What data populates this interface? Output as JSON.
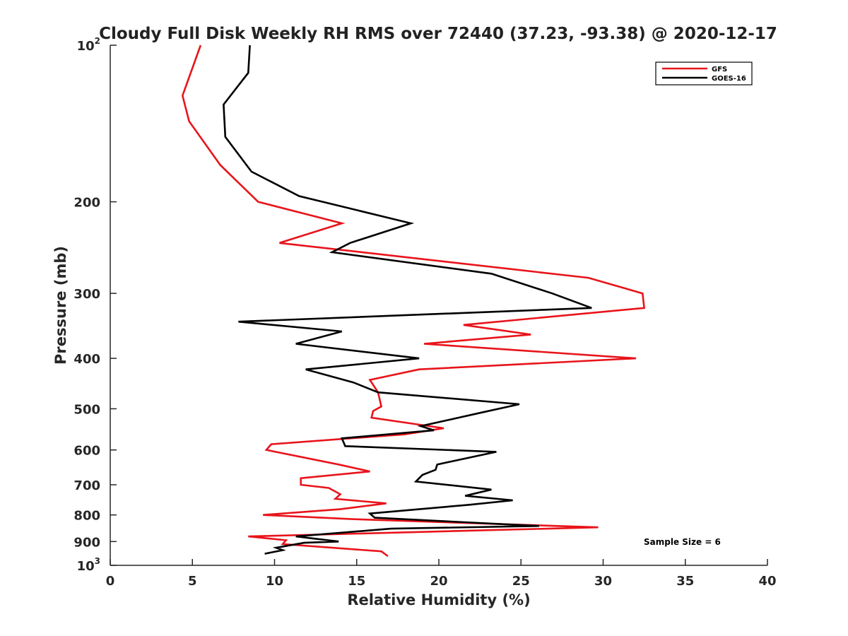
{
  "chart_data": {
    "type": "line",
    "title": "Cloudy Full Disk Weekly RH RMS over 72440 (37.23, -93.38) @ 2020-12-17",
    "xlabel": "Relative Humidity (%)",
    "ylabel": "Pressure (mb)",
    "xlim": [
      0,
      40
    ],
    "ylim": [
      100,
      1000
    ],
    "y_scale": "log",
    "y_reversed": true,
    "grid": false,
    "x_ticks": [
      0,
      5,
      10,
      15,
      20,
      25,
      30,
      35,
      40
    ],
    "x_tick_labels": [
      "0",
      "5",
      "10",
      "15",
      "20",
      "25",
      "30",
      "35",
      "40"
    ],
    "y_ticks": [
      100,
      200,
      300,
      400,
      500,
      600,
      700,
      800,
      900,
      1000
    ],
    "y_tick_labels": [
      {
        "base": "10",
        "exp": "2"
      },
      {
        "base": "200",
        "exp": ""
      },
      {
        "base": "300",
        "exp": ""
      },
      {
        "base": "400",
        "exp": ""
      },
      {
        "base": "500",
        "exp": ""
      },
      {
        "base": "600",
        "exp": ""
      },
      {
        "base": "700",
        "exp": ""
      },
      {
        "base": "800",
        "exp": ""
      },
      {
        "base": "900",
        "exp": ""
      },
      {
        "base": "10",
        "exp": "3"
      }
    ],
    "legend_position": "top-right",
    "annotation": "Sample Size = 6",
    "series": [
      {
        "name": "GFS",
        "color": "#e8141b",
        "points": [
          [
            5.5,
            100
          ],
          [
            4.4,
            125
          ],
          [
            4.8,
            140
          ],
          [
            6.7,
            170
          ],
          [
            9.0,
            200
          ],
          [
            14.1,
            220
          ],
          [
            10.3,
            240
          ],
          [
            29.1,
            280
          ],
          [
            32.4,
            300
          ],
          [
            32.5,
            320
          ],
          [
            21.5,
            345
          ],
          [
            25.6,
            360
          ],
          [
            19.1,
            375
          ],
          [
            32.0,
            400
          ],
          [
            18.8,
            420
          ],
          [
            15.8,
            440
          ],
          [
            16.3,
            465
          ],
          [
            16.5,
            495
          ],
          [
            16.0,
            505
          ],
          [
            15.9,
            520
          ],
          [
            20.3,
            545
          ],
          [
            17.9,
            560
          ],
          [
            9.8,
            585
          ],
          [
            9.5,
            600
          ],
          [
            13.9,
            640
          ],
          [
            15.8,
            660
          ],
          [
            11.6,
            680
          ],
          [
            11.6,
            700
          ],
          [
            13.3,
            710
          ],
          [
            14.0,
            730
          ],
          [
            13.7,
            745
          ],
          [
            16.8,
            760
          ],
          [
            14.0,
            780
          ],
          [
            9.3,
            800
          ],
          [
            14.7,
            815
          ],
          [
            29.7,
            845
          ],
          [
            8.4,
            880
          ],
          [
            10.7,
            895
          ],
          [
            10.5,
            910
          ],
          [
            16.5,
            940
          ],
          [
            16.9,
            960
          ]
        ]
      },
      {
        "name": "GOES-16",
        "color": "#000000",
        "points": [
          [
            8.5,
            100
          ],
          [
            8.4,
            113
          ],
          [
            6.9,
            130
          ],
          [
            7.0,
            150
          ],
          [
            8.6,
            175
          ],
          [
            11.5,
            195
          ],
          [
            18.3,
            220
          ],
          [
            14.6,
            240
          ],
          [
            13.5,
            250
          ],
          [
            23.2,
            275
          ],
          [
            26.9,
            300
          ],
          [
            29.3,
            320
          ],
          [
            7.8,
            340
          ],
          [
            14.1,
            355
          ],
          [
            11.3,
            375
          ],
          [
            18.8,
            400
          ],
          [
            11.9,
            420
          ],
          [
            14.8,
            445
          ],
          [
            16.3,
            465
          ],
          [
            24.9,
            490
          ],
          [
            22.4,
            510
          ],
          [
            18.9,
            540
          ],
          [
            19.7,
            550
          ],
          [
            14.1,
            570
          ],
          [
            14.3,
            590
          ],
          [
            23.5,
            605
          ],
          [
            19.9,
            640
          ],
          [
            19.8,
            655
          ],
          [
            19.0,
            670
          ],
          [
            18.6,
            690
          ],
          [
            23.2,
            715
          ],
          [
            21.6,
            735
          ],
          [
            24.5,
            750
          ],
          [
            21.8,
            765
          ],
          [
            15.8,
            795
          ],
          [
            16.1,
            810
          ],
          [
            26.1,
            840
          ],
          [
            17.1,
            850
          ],
          [
            11.3,
            880
          ],
          [
            13.9,
            900
          ],
          [
            11.8,
            905
          ],
          [
            10.1,
            925
          ],
          [
            10.5,
            935
          ],
          [
            9.4,
            950
          ]
        ]
      }
    ]
  }
}
